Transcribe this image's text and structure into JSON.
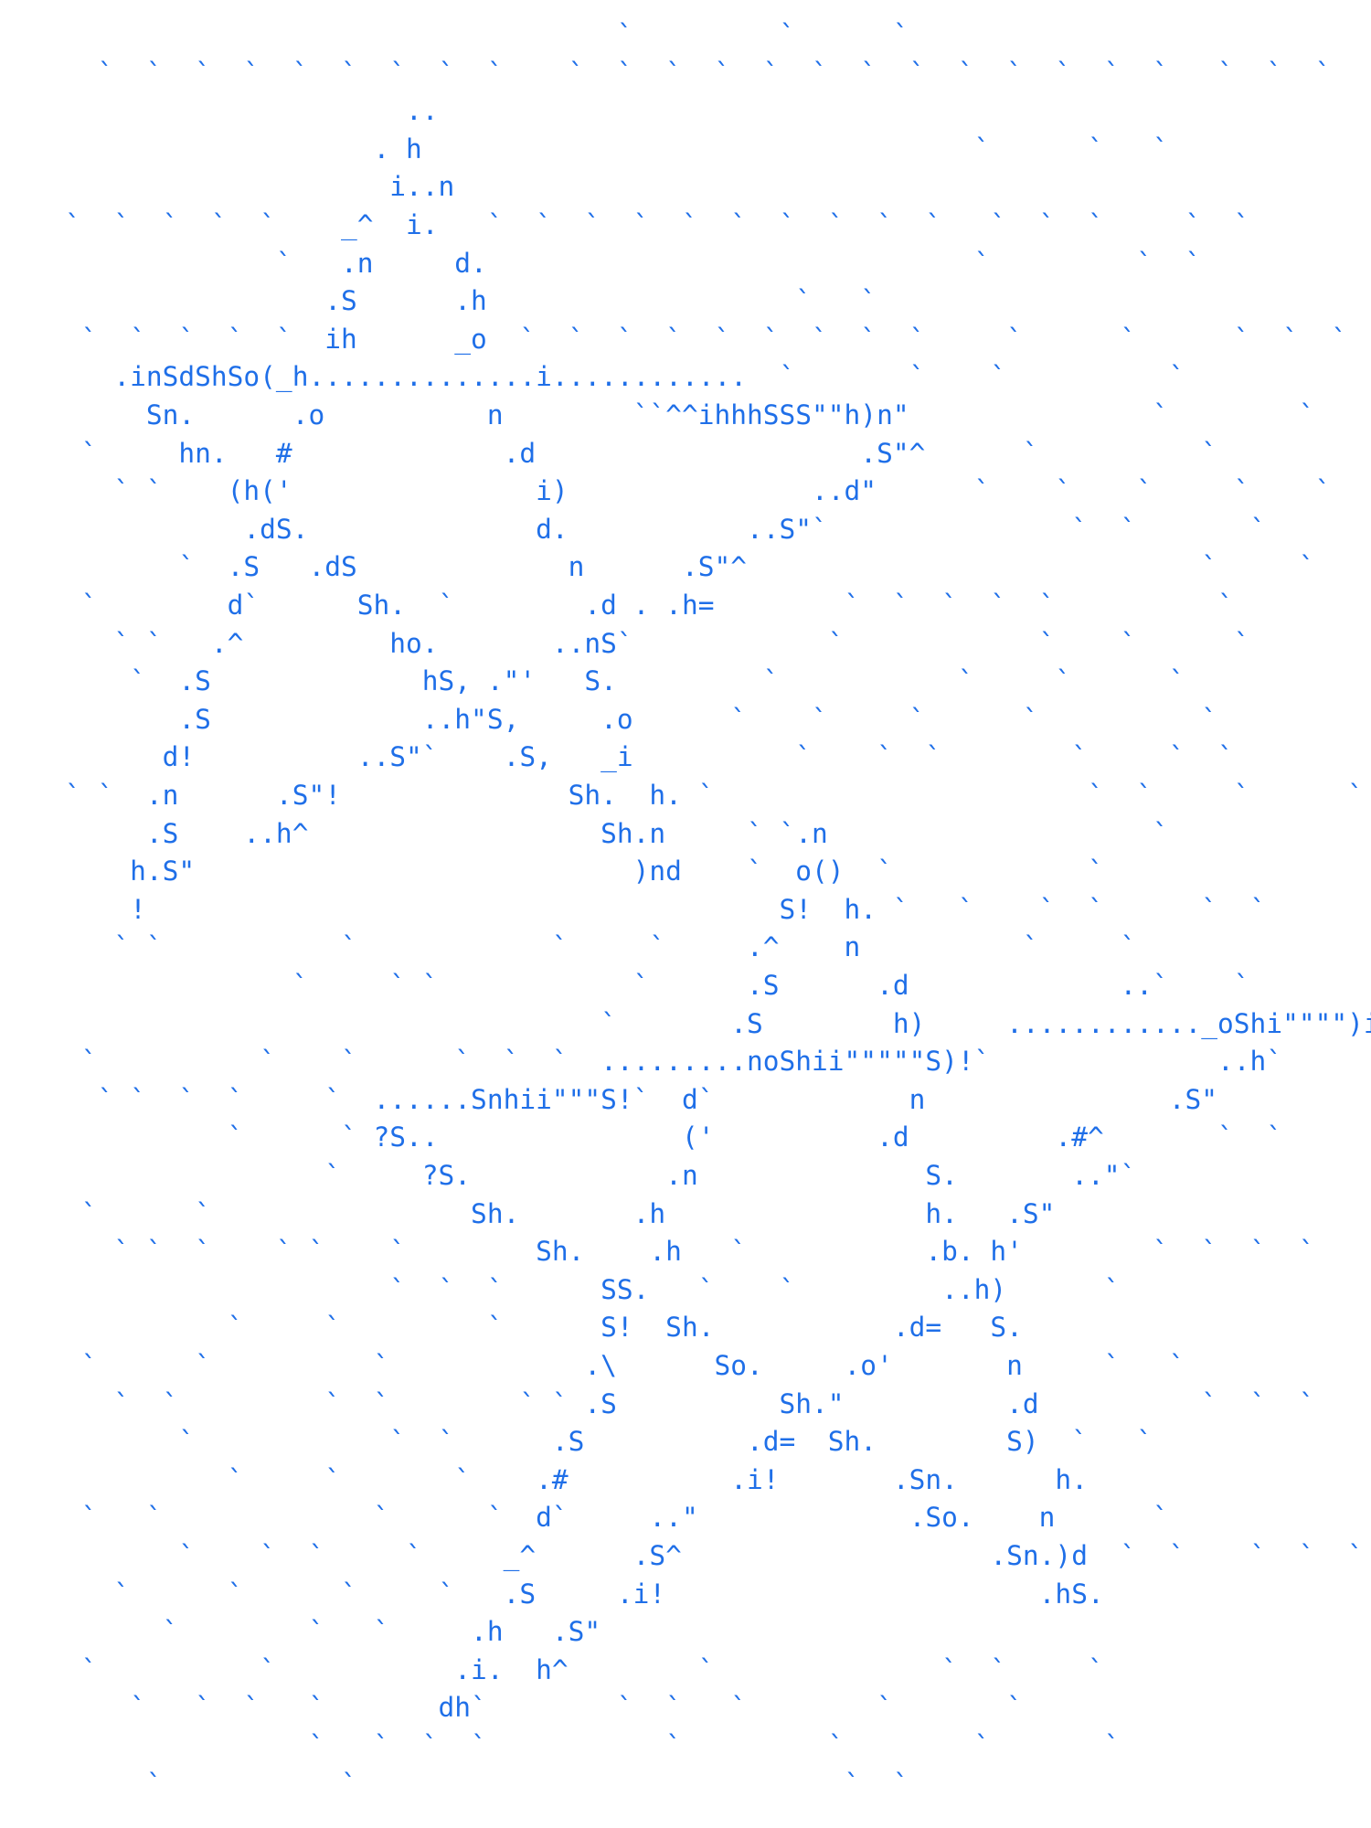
{
  "lines": [
    "                                      `         `      `",
    "      `  `  `  `  `  `  `  `  `    `  `  `  `  `  `  `  `  `  `  `  `  `   `  `  `     `  `",
    "                         ..",
    "                       . h                                  `      `   `",
    "                        i..n",
    "    `  `  `  `  `    _^  i.   `  `  `  `  `  `  `  `  `  `   `  `  `     `  `",
    "                 `   .n     d.                              `         `  `",
    "                    .S      .h                   `   `",
    "     `  `  `  `  `  ih      _o  `  `  `  `  `  `  `  `  `     `      `      `  `  `",
    "       .inSdShSo(_h..............i............  `       `    `          `",
    "         Sn.      .o          n        ``^^ihhhSSS\"\"h)n\"               `        `",
    "     `     hn.   #             .d                    .S\"^      `          `",
    "       ` `    (h('               i)               ..d\"      `    `    `     `    `",
    "               .dS.              d.           ..S\"`               `  `       `",
    "           `  .S   .dS             n      .S\"^                            `     `",
    "     `        d`      Sh.  `        .d . .h=        `  `  `  `  `          `",
    "       ` `   .^         ho.       ..nS`            `            `    `      `",
    "        `  .S             hS, .\"'   S.         `           `     `      `",
    "           .S             ..h\"S,     .o      `    `     `      `          `",
    "          d!          ..S\"`    .S,   _i          `    `  `        `     `  `",
    "    ` `  .n      .S\"!              Sh.  h. `                       `  `     `      `",
    "         .S    ..h^                  Sh.n     ` `.n                    `",
    "        h.S\"                           )nd    `  o()  `            `",
    "        !                                       S!  h. `   `    `  `      `  `",
    "       ` `           `            `     `     .^    n          `     `",
    "                  `     ` `            `      .S      .d             ..`    `",
    "                                     `       .S        h)     ............_oShi\"\"\"\")i#^  `",
    "     `          `    `      `  `  `  .........noShii\"\"\"\"\"S)!`              ..h`",
    "      ` `  `  `     `  ......Snhii\"\"\"S!`  d`            n               .S\"",
    "              `      ` ?S..               ('          .d         .#^       `  `",
    "                    `     ?S.            .n              S.       ..\"`",
    "     `      `                Sh.       .h                h.   .S\"",
    "       ` `  `    ` `    `        Sh.    .h   `           .b. h'        `  `  `  `",
    "                        `  `  `      SS.   `    `         ..h)      `",
    "              `     `         `      S!  Sh.           .d=   S.",
    "     `      `          `            .\\      So.     .o'       n     `   `",
    "       `  `         `  `        ` ` .S          Sh.\"          .d          `  `  `",
    "           `            `  `      .S          .d=  Sh.        S)  `   `",
    "              `     `       `    .#          .i!       .Sn.      h.",
    "     `   `             `      `  d`     ..\"             .So.    n      `",
    "           `    `  `     `     _^      .S^                   .Sn.)d  `  `    `  `  `",
    "       `      `      `     `   .S     .i!                       .hS.",
    "          `        `   `     .h   .S\"",
    "     `          `           .i.  h^        `              `  `     `",
    "        `   `  `   `       dh`        `  `   `        `       `",
    "                   `   `  `  `           `         `        `       `",
    "         `           `                              `  `"
  ]
}
